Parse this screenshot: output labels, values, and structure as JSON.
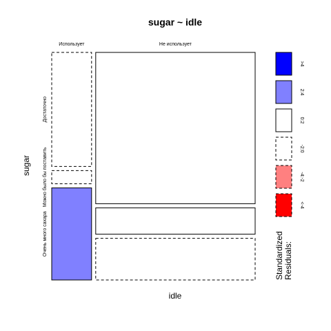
{
  "chart_data": {
    "type": "mosaic",
    "title": "sugar ~ idle",
    "xlabel": "idle",
    "ylabel": "sugar",
    "columns": [
      {
        "label": "Использует",
        "share": 0.2
      },
      {
        "label": "Не использует",
        "share": 0.8
      }
    ],
    "rows": [
      {
        "label": "Достаточно"
      },
      {
        "label": "Можно было бы поставить"
      },
      {
        "label": "Очень много сахара"
      }
    ],
    "cells": [
      {
        "column": "Использует",
        "row": "Достаточно",
        "share": 0.52,
        "residual_band": "-2:0"
      },
      {
        "column": "Использует",
        "row": "Можно было бы поставить",
        "share": 0.06,
        "residual_band": "-2:0"
      },
      {
        "column": "Использует",
        "row": "Очень много сахара",
        "share": 0.42,
        "residual_band": "2:4"
      },
      {
        "column": "Не использует",
        "row": "Достаточно",
        "share": 0.69,
        "residual_band": "0:2"
      },
      {
        "column": "Не использует",
        "row": "Можно было бы поставить",
        "share": 0.12,
        "residual_band": "0:2"
      },
      {
        "column": "Не использует",
        "row": "Очень много сахара",
        "share": 0.19,
        "residual_band": "-2:0"
      }
    ],
    "legend": {
      "title": "Standardized Residuals:",
      "position": "right",
      "items": [
        {
          "band": ">4",
          "label": ">4",
          "fill": "#0000ff",
          "dashed": false
        },
        {
          "band": "2:4",
          "label": "2:4",
          "fill": "#8080ff",
          "dashed": false
        },
        {
          "band": "0:2",
          "label": "0:2",
          "fill": "#ffffff",
          "dashed": false
        },
        {
          "band": "-2:0",
          "label": "-2:0",
          "fill": "#ffffff",
          "dashed": true
        },
        {
          "band": "-4:-2",
          "label": "-4:-2",
          "fill": "#ff8080",
          "dashed": true
        },
        {
          "band": "<-4",
          "label": "<-4",
          "fill": "#ff0000",
          "dashed": true
        }
      ]
    }
  }
}
